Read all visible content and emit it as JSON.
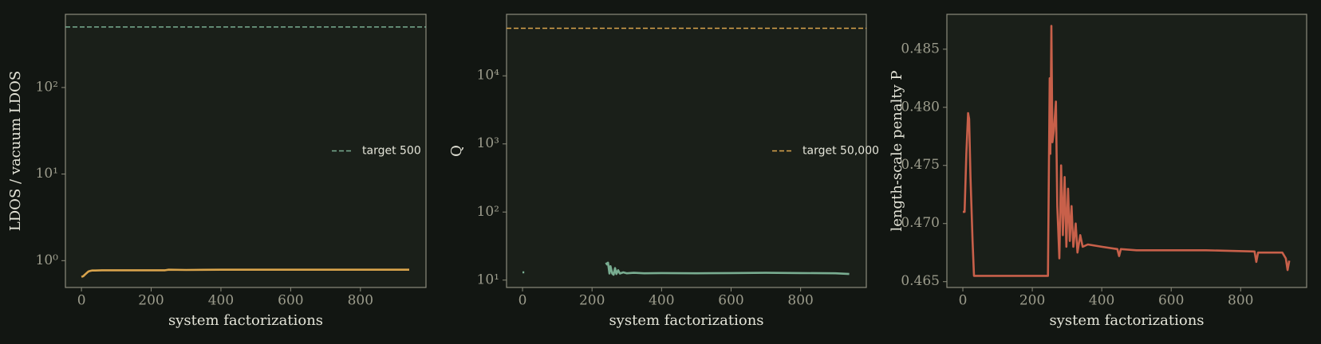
{
  "chart_data": [
    {
      "type": "line",
      "yscale": "log",
      "xlabel": "system factorizations",
      "ylabel": "LDOS / vacuum LDOS",
      "xlim": [
        -46,
        988
      ],
      "ylim": [
        0.49,
        700
      ],
      "xticks": [
        0,
        200,
        400,
        600,
        800
      ],
      "yticks": [
        {
          "value": 1,
          "label": "10⁰"
        },
        {
          "value": 10,
          "label": "10¹"
        },
        {
          "value": 100,
          "label": "10²"
        }
      ],
      "legend": "center right",
      "x": [
        0,
        5,
        10,
        15,
        20,
        25,
        30,
        40,
        60,
        100,
        200,
        240,
        250,
        300,
        400,
        500,
        600,
        700,
        800,
        900,
        940
      ],
      "series": [
        {
          "color": "#d9a44c",
          "values": [
            0.65,
            0.66,
            0.69,
            0.72,
            0.75,
            0.76,
            0.77,
            0.77,
            0.775,
            0.775,
            0.775,
            0.775,
            0.785,
            0.78,
            0.785,
            0.785,
            0.785,
            0.785,
            0.785,
            0.785,
            0.785
          ]
        }
      ],
      "hlines": [
        {
          "name": "target 500",
          "value": 500,
          "color": "#79ad91"
        }
      ]
    },
    {
      "type": "line",
      "yscale": "log",
      "xlabel": "system factorizations",
      "ylabel": "Q",
      "xlim": [
        -46,
        989
      ],
      "ylim": [
        7.8,
        80000
      ],
      "xticks": [
        0,
        200,
        400,
        600,
        800
      ],
      "yticks": [
        {
          "value": 10,
          "label": "10¹"
        },
        {
          "value": 100,
          "label": "10²"
        },
        {
          "value": 1000,
          "label": "10³"
        },
        {
          "value": 10000,
          "label": "10⁴"
        }
      ],
      "legend": "center right",
      "x": [
        0,
        5,
        100,
        240,
        243,
        246,
        250,
        253,
        258,
        262,
        266,
        270,
        275,
        280,
        290,
        300,
        320,
        350,
        400,
        500,
        600,
        700,
        800,
        900,
        940
      ],
      "series": [
        {
          "color": "#79ad91",
          "values": [
            13,
            13,
            null,
            18,
            17,
            18,
            12.5,
            16,
            12.5,
            12,
            15,
            12.3,
            14,
            12.5,
            13,
            12.6,
            12.8,
            12.6,
            12.7,
            12.6,
            12.7,
            12.8,
            12.7,
            12.6,
            12.3
          ]
        }
      ],
      "hlines": [
        {
          "name": "target 50,000",
          "value": 50000,
          "color": "#d9a44c"
        }
      ]
    },
    {
      "type": "line",
      "yscale": "linear",
      "xlabel": "system factorizations",
      "ylabel": "length-scale penalty P",
      "xlim": [
        -46,
        990
      ],
      "ylim": [
        0.4645,
        0.488
      ],
      "xticks": [
        0,
        200,
        400,
        600,
        800
      ],
      "yticks": [
        0.465,
        {
          "value": 0.47,
          "label": "0.470"
        },
        0.475,
        {
          "value": 0.48,
          "label": "0.480"
        },
        0.485
      ],
      "x": [
        0,
        5,
        10,
        15,
        18,
        22,
        28,
        32,
        245,
        250,
        252,
        255,
        258,
        262,
        268,
        272,
        278,
        283,
        288,
        293,
        298,
        303,
        308,
        313,
        318,
        325,
        330,
        338,
        345,
        360,
        400,
        445,
        450,
        455,
        500,
        700,
        840,
        845,
        850,
        920,
        930,
        935,
        940
      ],
      "series": [
        {
          "color": "#c8604a",
          "values": [
            0.471,
            0.471,
            0.476,
            0.4795,
            0.479,
            0.474,
            0.4685,
            0.4655,
            0.4655,
            0.4825,
            0.476,
            0.487,
            0.477,
            0.478,
            0.4805,
            0.4715,
            0.467,
            0.475,
            0.469,
            0.474,
            0.468,
            0.473,
            0.4685,
            0.4715,
            0.468,
            0.47,
            0.4675,
            0.469,
            0.468,
            0.4682,
            0.468,
            0.4678,
            0.4672,
            0.4678,
            0.4677,
            0.4677,
            0.4676,
            0.4667,
            0.4675,
            0.4675,
            0.467,
            0.466,
            0.4668
          ]
        }
      ]
    }
  ]
}
